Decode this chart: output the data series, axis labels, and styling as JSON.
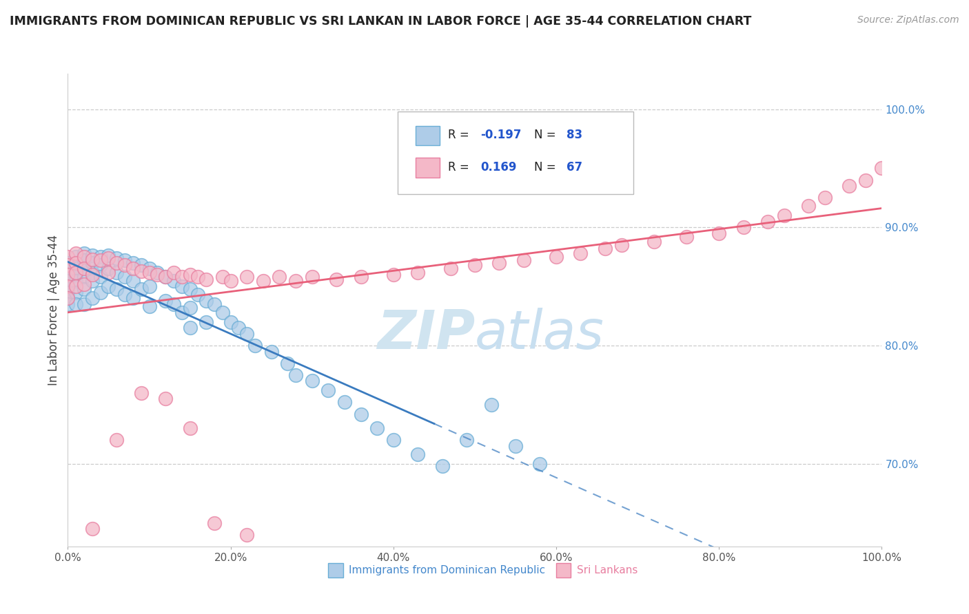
{
  "title": "IMMIGRANTS FROM DOMINICAN REPUBLIC VS SRI LANKAN IN LABOR FORCE | AGE 35-44 CORRELATION CHART",
  "source": "Source: ZipAtlas.com",
  "ylabel": "In Labor Force | Age 35-44",
  "xlim": [
    0.0,
    1.0
  ],
  "ylim": [
    0.63,
    1.03
  ],
  "blue_R": -0.197,
  "blue_N": 83,
  "pink_R": 0.169,
  "pink_N": 67,
  "blue_color": "#aecce8",
  "blue_edge": "#6aaed6",
  "pink_color": "#f4b8c8",
  "pink_edge": "#e87fa0",
  "blue_line_color": "#3a7bbf",
  "pink_line_color": "#e8607a",
  "watermark_color": "#d0e4f0",
  "legend_R_color": "#2255cc",
  "grid_color": "#cccccc",
  "blue_scatter_x": [
    0.0,
    0.0,
    0.0,
    0.0,
    0.0,
    0.0,
    0.0,
    0.0,
    0.01,
    0.01,
    0.01,
    0.01,
    0.01,
    0.01,
    0.01,
    0.02,
    0.02,
    0.02,
    0.02,
    0.02,
    0.02,
    0.03,
    0.03,
    0.03,
    0.03,
    0.03,
    0.04,
    0.04,
    0.04,
    0.04,
    0.05,
    0.05,
    0.05,
    0.06,
    0.06,
    0.06,
    0.07,
    0.07,
    0.07,
    0.08,
    0.08,
    0.08,
    0.09,
    0.09,
    0.1,
    0.1,
    0.1,
    0.11,
    0.12,
    0.12,
    0.13,
    0.13,
    0.14,
    0.14,
    0.15,
    0.15,
    0.15,
    0.16,
    0.17,
    0.17,
    0.18,
    0.19,
    0.2,
    0.21,
    0.22,
    0.23,
    0.25,
    0.27,
    0.28,
    0.3,
    0.32,
    0.34,
    0.36,
    0.38,
    0.4,
    0.43,
    0.46,
    0.49,
    0.52,
    0.55,
    0.58
  ],
  "blue_scatter_y": [
    0.87,
    0.865,
    0.86,
    0.855,
    0.85,
    0.845,
    0.84,
    0.835,
    0.875,
    0.87,
    0.865,
    0.86,
    0.855,
    0.845,
    0.835,
    0.878,
    0.872,
    0.865,
    0.858,
    0.848,
    0.835,
    0.876,
    0.87,
    0.862,
    0.855,
    0.84,
    0.875,
    0.868,
    0.858,
    0.845,
    0.876,
    0.865,
    0.85,
    0.874,
    0.862,
    0.848,
    0.872,
    0.858,
    0.843,
    0.87,
    0.855,
    0.84,
    0.868,
    0.848,
    0.865,
    0.85,
    0.833,
    0.862,
    0.858,
    0.838,
    0.855,
    0.835,
    0.85,
    0.828,
    0.848,
    0.832,
    0.815,
    0.843,
    0.838,
    0.82,
    0.835,
    0.828,
    0.82,
    0.815,
    0.81,
    0.8,
    0.795,
    0.785,
    0.775,
    0.77,
    0.762,
    0.752,
    0.742,
    0.73,
    0.72,
    0.708,
    0.698,
    0.72,
    0.75,
    0.715,
    0.7
  ],
  "pink_scatter_x": [
    0.0,
    0.0,
    0.0,
    0.0,
    0.0,
    0.01,
    0.01,
    0.01,
    0.01,
    0.02,
    0.02,
    0.02,
    0.03,
    0.03,
    0.04,
    0.05,
    0.05,
    0.06,
    0.07,
    0.08,
    0.09,
    0.1,
    0.11,
    0.12,
    0.13,
    0.14,
    0.15,
    0.16,
    0.17,
    0.19,
    0.2,
    0.22,
    0.24,
    0.26,
    0.28,
    0.3,
    0.33,
    0.36,
    0.4,
    0.43,
    0.47,
    0.5,
    0.53,
    0.56,
    0.6,
    0.63,
    0.66,
    0.68,
    0.72,
    0.76,
    0.8,
    0.83,
    0.86,
    0.88,
    0.91,
    0.93,
    0.96,
    0.98,
    1.0,
    0.03,
    0.06,
    0.09,
    0.12,
    0.15,
    0.18,
    0.22
  ],
  "pink_scatter_y": [
    0.875,
    0.868,
    0.86,
    0.85,
    0.84,
    0.878,
    0.87,
    0.862,
    0.85,
    0.875,
    0.865,
    0.852,
    0.873,
    0.86,
    0.872,
    0.874,
    0.862,
    0.87,
    0.868,
    0.865,
    0.863,
    0.862,
    0.86,
    0.858,
    0.862,
    0.858,
    0.86,
    0.858,
    0.856,
    0.858,
    0.855,
    0.858,
    0.855,
    0.858,
    0.855,
    0.858,
    0.856,
    0.858,
    0.86,
    0.862,
    0.865,
    0.868,
    0.87,
    0.872,
    0.875,
    0.878,
    0.882,
    0.885,
    0.888,
    0.892,
    0.895,
    0.9,
    0.905,
    0.91,
    0.918,
    0.925,
    0.935,
    0.94,
    0.95,
    0.645,
    0.72,
    0.76,
    0.755,
    0.73,
    0.65,
    0.64
  ]
}
